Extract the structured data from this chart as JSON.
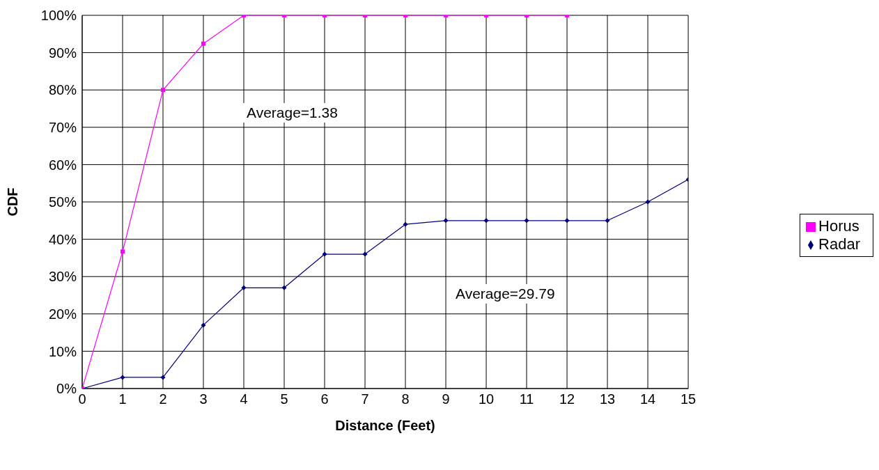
{
  "chart_data": {
    "type": "line",
    "xlabel": "Distance (Feet)",
    "ylabel": "CDF",
    "x": [
      0,
      1,
      2,
      3,
      4,
      5,
      6,
      7,
      8,
      9,
      10,
      11,
      12,
      13,
      14,
      15
    ],
    "xlim": [
      0,
      15
    ],
    "xticks": [
      0,
      1,
      2,
      3,
      4,
      5,
      6,
      7,
      8,
      9,
      10,
      11,
      12,
      13,
      14,
      15
    ],
    "ylim": [
      0,
      100
    ],
    "yticks": [
      {
        "value": 0,
        "label": "0%"
      },
      {
        "value": 10,
        "label": "10%"
      },
      {
        "value": 20,
        "label": "20%"
      },
      {
        "value": 30,
        "label": "30%"
      },
      {
        "value": 40,
        "label": "40%"
      },
      {
        "value": 50,
        "label": "50%"
      },
      {
        "value": 60,
        "label": "60%"
      },
      {
        "value": 70,
        "label": "70%"
      },
      {
        "value": 80,
        "label": "80%"
      },
      {
        "value": 90,
        "label": "90%"
      },
      {
        "value": 100,
        "label": "100%"
      }
    ],
    "grid": true,
    "legend": "right",
    "line_style": "solid",
    "series": [
      {
        "name": "Radar",
        "color": "#000080",
        "marker": "diamond",
        "values": [
          0,
          3,
          3,
          17,
          27,
          27,
          36,
          36,
          44,
          45,
          45,
          45,
          45,
          45,
          50,
          56
        ]
      },
      {
        "name": "Horus",
        "color": "#ff00ff",
        "marker": "square",
        "values": [
          0,
          36.7,
          80,
          92.4,
          100,
          100,
          100,
          100,
          100,
          100,
          100,
          100,
          100,
          null,
          null,
          null
        ]
      }
    ],
    "annotations": [
      "Average=1.38",
      "Average=29.79"
    ]
  }
}
